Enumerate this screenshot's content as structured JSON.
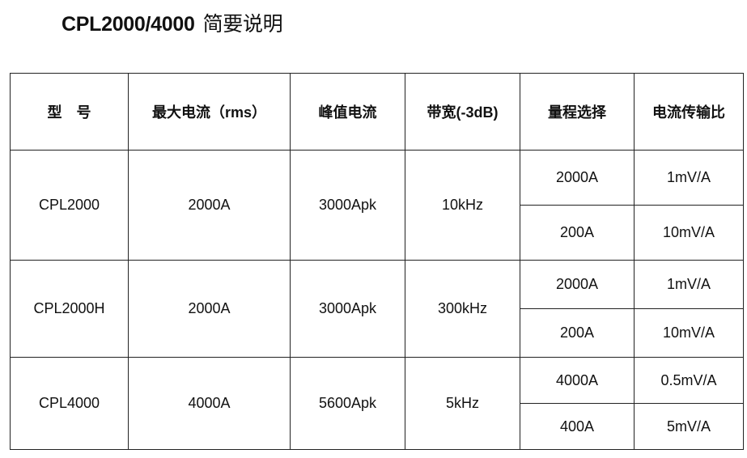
{
  "title": {
    "model": "CPL2000/4000",
    "text": "简要说明"
  },
  "headers": [
    "型　号",
    "最大电流（rms）",
    "峰值电流",
    "带宽(-3dB)",
    "量程选择",
    "电流传输比"
  ],
  "rows": [
    {
      "model": "CPL2000",
      "max_current": "2000A",
      "peak_current": "3000Apk",
      "bandwidth": "10kHz",
      "ranges": [
        {
          "range": "2000A",
          "ratio": "1mV/A"
        },
        {
          "range": "200A",
          "ratio": "10mV/A"
        }
      ]
    },
    {
      "model": "CPL2000H",
      "max_current": "2000A",
      "peak_current": "3000Apk",
      "bandwidth": "300kHz",
      "ranges": [
        {
          "range": "2000A",
          "ratio": "1mV/A"
        },
        {
          "range": "200A",
          "ratio": "10mV/A"
        }
      ]
    },
    {
      "model": "CPL4000",
      "max_current": "4000A",
      "peak_current": "5600Apk",
      "bandwidth": "5kHz",
      "ranges": [
        {
          "range": "4000A",
          "ratio": "0.5mV/A"
        },
        {
          "range": "400A",
          "ratio": "5mV/A"
        }
      ]
    }
  ]
}
